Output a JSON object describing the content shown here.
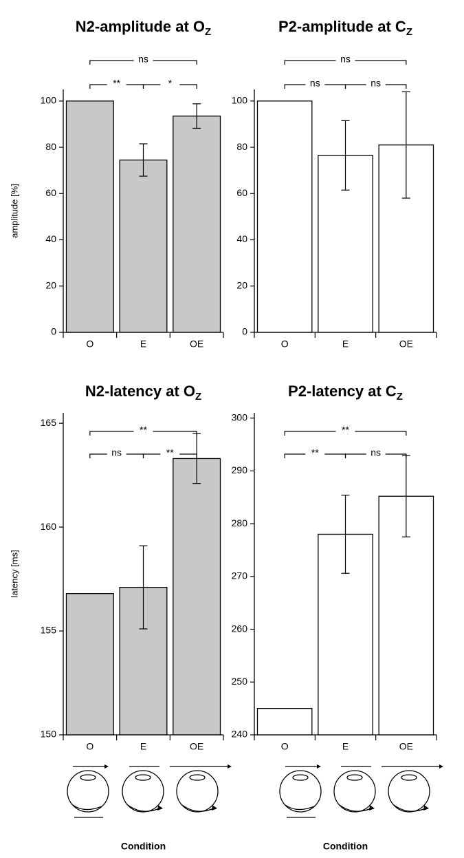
{
  "chart_data": [
    {
      "type": "bar",
      "title": "N2-amplitude at O",
      "title_sub": "Z",
      "ylabel": "amplitude [%]",
      "categories": [
        "O",
        "E",
        "OE"
      ],
      "values": [
        100,
        74.5,
        93.5
      ],
      "errors": [
        null,
        7,
        5.3
      ],
      "color": "#c8c8c8",
      "ylim": [
        0,
        105
      ],
      "yticks": [
        0,
        20,
        40,
        60,
        80,
        100
      ],
      "significance": [
        {
          "between": [
            "O",
            "OE"
          ],
          "label": "ns"
        },
        {
          "between": [
            "O",
            "E"
          ],
          "label": "**"
        },
        {
          "between": [
            "E",
            "OE"
          ],
          "label": "*"
        }
      ]
    },
    {
      "type": "bar",
      "title": "P2-amplitude at C",
      "title_sub": "Z",
      "categories": [
        "O",
        "E",
        "OE"
      ],
      "values": [
        100,
        76.5,
        81
      ],
      "errors": [
        null,
        15,
        23
      ],
      "color": "#ffffff",
      "ylim": [
        0,
        105
      ],
      "yticks": [
        0,
        20,
        40,
        60,
        80,
        100
      ],
      "significance": [
        {
          "between": [
            "O",
            "OE"
          ],
          "label": "ns"
        },
        {
          "between": [
            "O",
            "E"
          ],
          "label": "ns"
        },
        {
          "between": [
            "E",
            "OE"
          ],
          "label": "ns"
        }
      ]
    },
    {
      "type": "bar",
      "title": "N2-latency at O",
      "title_sub": "Z",
      "ylabel": "latency [ms]",
      "xlabel": "Condition",
      "categories": [
        "O",
        "E",
        "OE"
      ],
      "values": [
        156.8,
        157.1,
        163.3
      ],
      "errors": [
        null,
        2.0,
        1.2
      ],
      "color": "#c8c8c8",
      "ylim": [
        150,
        165.5
      ],
      "yticks": [
        150,
        155,
        160,
        165
      ],
      "significance": [
        {
          "between": [
            "O",
            "OE"
          ],
          "label": "**"
        },
        {
          "between": [
            "O",
            "E"
          ],
          "label": "ns"
        },
        {
          "between": [
            "E",
            "OE"
          ],
          "label": "**"
        }
      ]
    },
    {
      "type": "bar",
      "title": "P2-latency at C",
      "title_sub": "Z",
      "xlabel": "Condition",
      "categories": [
        "O",
        "E",
        "OE"
      ],
      "values": [
        245,
        278,
        285.2
      ],
      "errors": [
        null,
        7.4,
        7.7
      ],
      "color": "#ffffff",
      "ylim": [
        240,
        301
      ],
      "yticks": [
        240,
        250,
        260,
        270,
        280,
        290,
        300
      ],
      "significance": [
        {
          "between": [
            "O",
            "OE"
          ],
          "label": "**"
        },
        {
          "between": [
            "O",
            "E"
          ],
          "label": "**"
        },
        {
          "between": [
            "E",
            "OE"
          ],
          "label": "ns"
        }
      ]
    }
  ]
}
